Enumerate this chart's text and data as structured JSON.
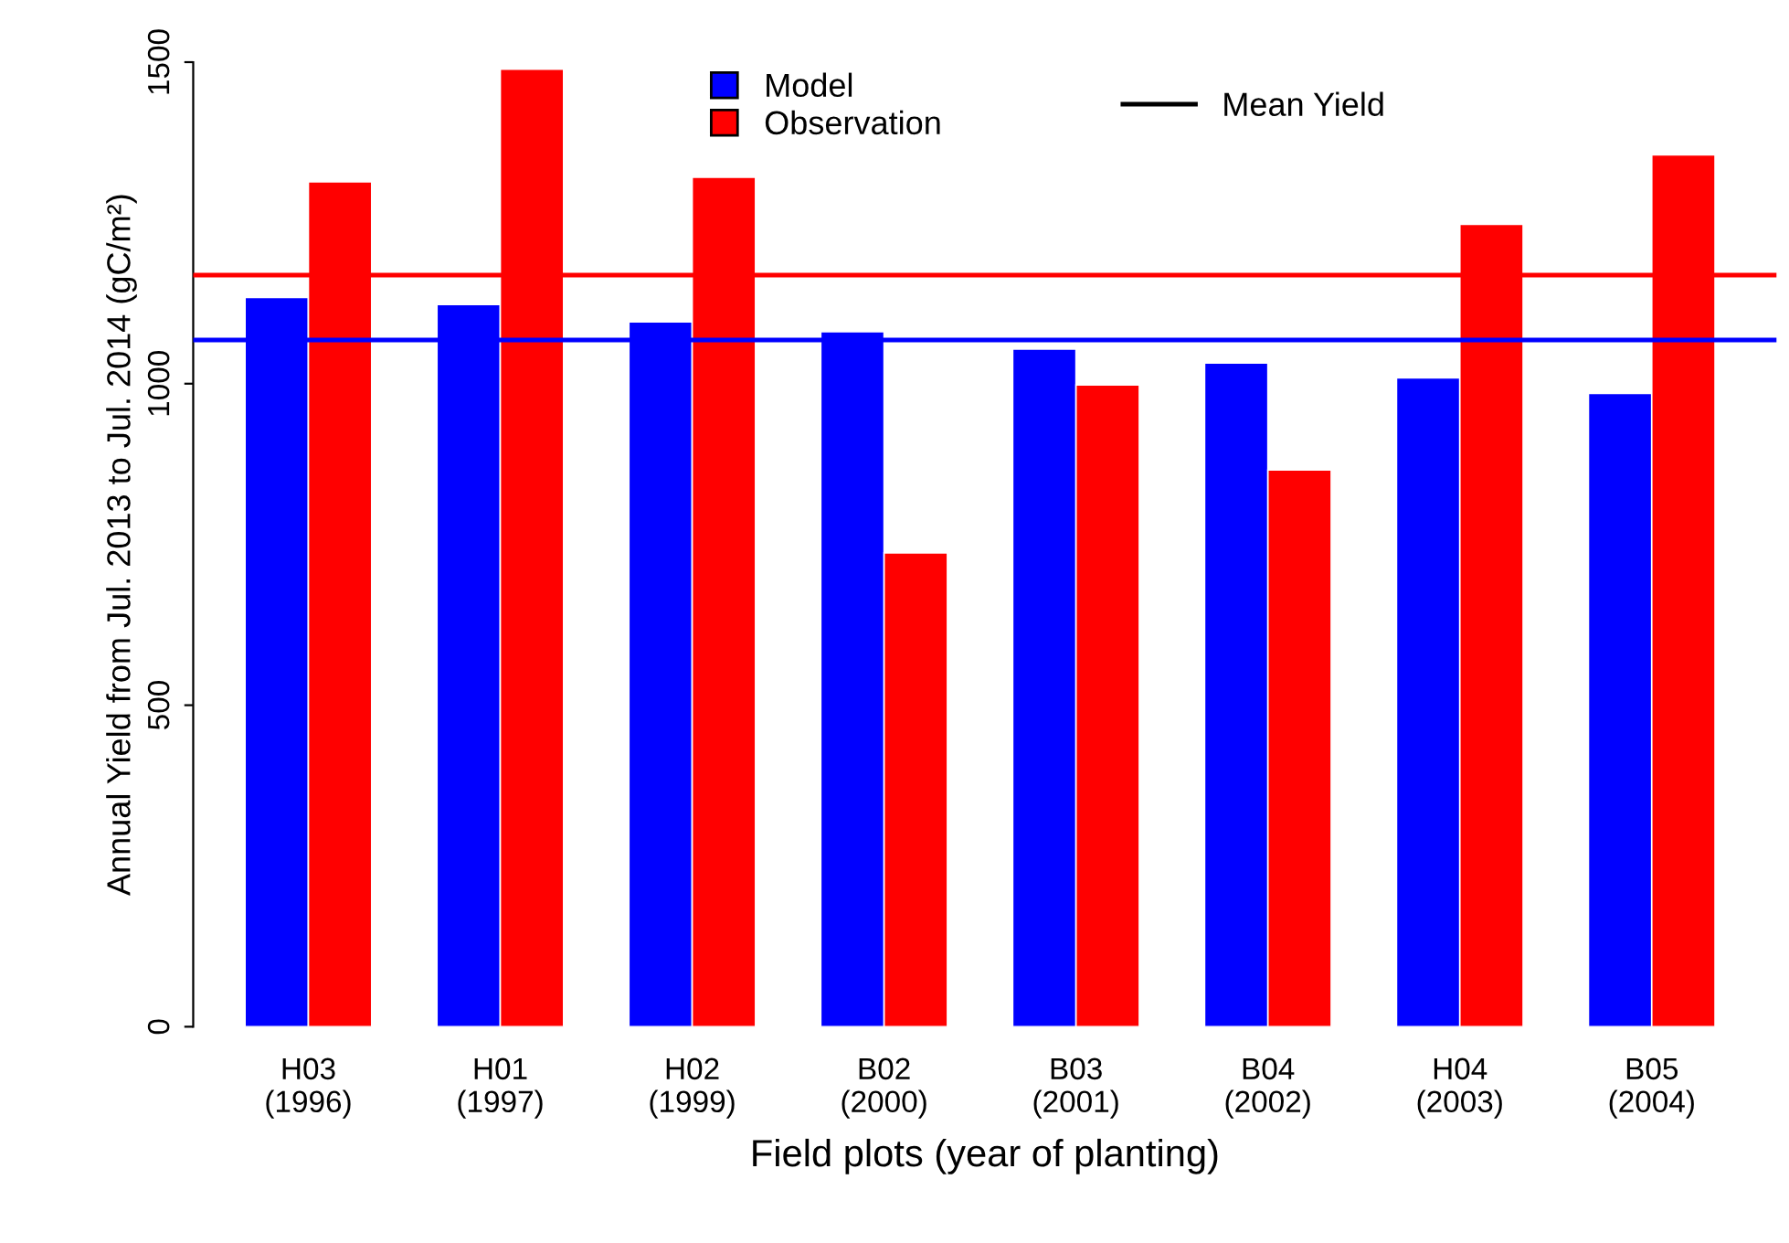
{
  "chart_data": {
    "type": "bar",
    "xlabel": "Field plots (year of planting)",
    "ylabel": "Annual Yield from Jul. 2013 to Jul. 2014 (gC/m²)",
    "categories": [
      "H03\n(1996)",
      "H01\n(1997)",
      "H02\n(1999)",
      "B02\n(2000)",
      "B03\n(2001)",
      "B04\n(2002)",
      "H04\n(2003)",
      "B05\n(2004)"
    ],
    "series": [
      {
        "name": "Model",
        "color": "#0000ff",
        "values": [
          1134,
          1123,
          1096,
          1081,
          1054,
          1032,
          1009,
          985
        ]
      },
      {
        "name": "Observation",
        "color": "#ff0000",
        "values": [
          1314,
          1489,
          1321,
          737,
          998,
          866,
          1248,
          1356
        ]
      }
    ],
    "ref_lines": [
      {
        "axis": "y",
        "value": 1068,
        "color": "#0000ff"
      },
      {
        "axis": "y",
        "value": 1169,
        "color": "#ff0000"
      }
    ],
    "annotations": [
      "Mean Yield"
    ],
    "ylim": [
      0,
      1500
    ],
    "yticks": [
      0,
      500,
      1000,
      1500
    ],
    "legend": "top",
    "grid": false
  }
}
